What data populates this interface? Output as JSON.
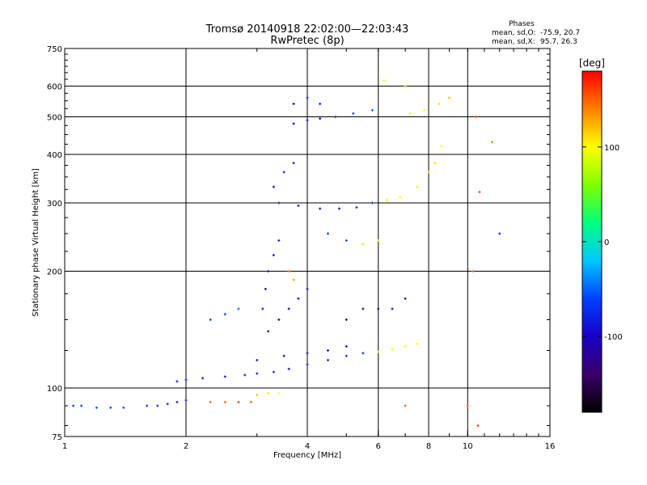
{
  "chart_data": {
    "type": "scatter",
    "title": "Tromsø 20140918 22:02:00—22:03:43",
    "subtitle": "RwPretec (8p)",
    "xlabel": "Frequency [MHz]",
    "ylabel": "Stationary phase Virtual Height [km]",
    "x_scale": "log",
    "y_scale": "log",
    "xlim": [
      1,
      16
    ],
    "ylim": [
      75,
      750
    ],
    "x_ticks": [
      1,
      2,
      4,
      6,
      8,
      10,
      16
    ],
    "x_tick_labels": [
      "1",
      "2",
      "4",
      "6",
      "8",
      "10",
      "16"
    ],
    "y_ticks": [
      75,
      100,
      200,
      300,
      400,
      500,
      600,
      750
    ],
    "y_tick_labels": [
      "75",
      "100",
      "200",
      "300",
      "400",
      "500",
      "600",
      "750"
    ],
    "grid": true,
    "colorbar": {
      "label": "[deg]",
      "range": [
        -180,
        180
      ],
      "ticks": [
        100,
        0,
        -100
      ],
      "tick_labels": [
        "100",
        "0",
        "-100"
      ],
      "colors": [
        "#000000",
        "#3a0066",
        "#1a00c8",
        "#0040ff",
        "#00c8ff",
        "#00ff80",
        "#80ff00",
        "#ffff00",
        "#ff8000",
        "#ff0000"
      ]
    },
    "phase_header": "Phases",
    "phase_stats": [
      {
        "label": "mean, sd,O:",
        "values": "-75.9, 20.7"
      },
      {
        "label": "mean, sd,X:",
        "values": " 95.7, 26.3"
      }
    ],
    "series": [
      {
        "points": [
          [
            1.05,
            90,
            -60
          ],
          [
            1.1,
            90,
            -60
          ],
          [
            1.2,
            89,
            -55
          ],
          [
            1.3,
            89,
            -60
          ],
          [
            1.4,
            89,
            -55
          ],
          [
            1.6,
            90,
            -70
          ],
          [
            1.7,
            90,
            -70
          ],
          [
            1.8,
            91,
            -75
          ],
          [
            1.9,
            92,
            -80
          ],
          [
            2.0,
            93,
            -80
          ],
          [
            2.3,
            92,
            150
          ],
          [
            2.5,
            92,
            150
          ],
          [
            2.7,
            92,
            160
          ],
          [
            2.9,
            92,
            150
          ],
          [
            3.0,
            96,
            120
          ],
          [
            3.2,
            97,
            110
          ],
          [
            3.4,
            97,
            100
          ],
          [
            1.9,
            104,
            -80
          ],
          [
            2.0,
            105,
            -85
          ],
          [
            2.2,
            106,
            -90
          ],
          [
            2.5,
            107,
            -90
          ],
          [
            2.8,
            108,
            -85
          ],
          [
            3.0,
            109,
            -85
          ],
          [
            3.3,
            110,
            -85
          ],
          [
            3.6,
            112,
            -85
          ],
          [
            4.0,
            115,
            -80
          ],
          [
            4.5,
            118,
            -80
          ],
          [
            5.0,
            121,
            -75
          ],
          [
            5.5,
            123,
            -70
          ],
          [
            6.0,
            124,
            90
          ],
          [
            6.5,
            126,
            95
          ],
          [
            7.0,
            128,
            100
          ],
          [
            7.5,
            130,
            100
          ],
          [
            3.0,
            118,
            -90
          ],
          [
            3.5,
            121,
            -110
          ],
          [
            4.0,
            123,
            -110
          ],
          [
            4.5,
            125,
            -105
          ],
          [
            5.0,
            128,
            -100
          ],
          [
            3.2,
            140,
            -110
          ],
          [
            3.4,
            150,
            -120
          ],
          [
            3.6,
            160,
            -110
          ],
          [
            3.8,
            170,
            -100
          ],
          [
            4.0,
            180,
            -100
          ],
          [
            5.0,
            150,
            -120
          ],
          [
            5.5,
            160,
            -130
          ],
          [
            6.0,
            160,
            -120
          ],
          [
            6.5,
            160,
            -110
          ],
          [
            7.0,
            170,
            -110
          ],
          [
            3.1,
            160,
            -90
          ],
          [
            3.15,
            180,
            -100
          ],
          [
            3.2,
            200,
            -100
          ],
          [
            3.3,
            220,
            -90
          ],
          [
            3.4,
            240,
            -80
          ],
          [
            3.6,
            200,
            150
          ],
          [
            3.7,
            190,
            130
          ],
          [
            2.3,
            150,
            -60
          ],
          [
            2.5,
            155,
            -60
          ],
          [
            2.7,
            160,
            -50
          ],
          [
            3.4,
            300,
            -90
          ],
          [
            3.8,
            295,
            -90
          ],
          [
            4.3,
            290,
            -95
          ],
          [
            4.8,
            290,
            -90
          ],
          [
            5.3,
            292,
            -80
          ],
          [
            5.8,
            300,
            -70
          ],
          [
            6.3,
            305,
            95
          ],
          [
            6.8,
            310,
            100
          ],
          [
            7.5,
            330,
            110
          ],
          [
            8.0,
            360,
            120
          ],
          [
            8.3,
            380,
            110
          ],
          [
            8.6,
            420,
            100
          ],
          [
            3.3,
            330,
            -100
          ],
          [
            3.5,
            360,
            -80
          ],
          [
            3.7,
            380,
            -90
          ],
          [
            4.5,
            250,
            -70
          ],
          [
            5.0,
            240,
            -60
          ],
          [
            5.5,
            235,
            80
          ],
          [
            6.0,
            240,
            100
          ],
          [
            3.7,
            480,
            -100
          ],
          [
            4.0,
            490,
            -100
          ],
          [
            4.3,
            495,
            -90
          ],
          [
            4.7,
            500,
            -80
          ],
          [
            5.2,
            510,
            -60
          ],
          [
            5.8,
            520,
            -50
          ],
          [
            3.7,
            540,
            -100
          ],
          [
            4.0,
            560,
            -90
          ],
          [
            4.3,
            540,
            -80
          ],
          [
            7.2,
            510,
            90
          ],
          [
            7.8,
            520,
            100
          ],
          [
            8.5,
            540,
            110
          ],
          [
            9.0,
            560,
            120
          ],
          [
            6.2,
            620,
            100
          ],
          [
            7.0,
            600,
            120
          ],
          [
            10.5,
            500,
            160
          ],
          [
            10.7,
            320,
            160
          ],
          [
            11.5,
            430,
            140
          ],
          [
            12.0,
            250,
            -70
          ],
          [
            10.3,
            200,
            150
          ],
          [
            10.0,
            90,
            150
          ],
          [
            10.6,
            80,
            160
          ],
          [
            7.0,
            90,
            150
          ]
        ]
      }
    ]
  }
}
